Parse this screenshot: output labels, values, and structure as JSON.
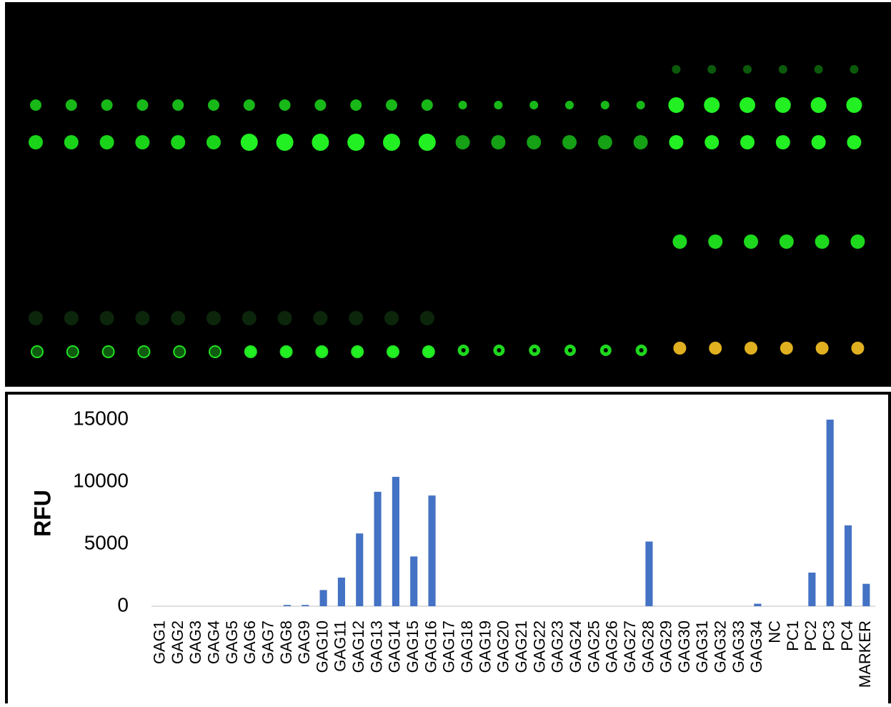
{
  "chart_data": {
    "type": "bar",
    "y_label": "RFU",
    "categories": [
      "GAG1",
      "GAG2",
      "GAG3",
      "GAG4",
      "GAG5",
      "GAG6",
      "GAG7",
      "GAG8",
      "GAG9",
      "GAG10",
      "GAG11",
      "GAG12",
      "GAG13",
      "GAG14",
      "GAG15",
      "GAG16",
      "GAG17",
      "GAG18",
      "GAG19",
      "GAG20",
      "GAG21",
      "GAG22",
      "GAG23",
      "GAG24",
      "GAG25",
      "GAG26",
      "GAG27",
      "GAG28",
      "GAG29",
      "GAG30",
      "GAG31",
      "GAG32",
      "GAG33",
      "GAG34",
      "NC",
      "PC1",
      "PC2",
      "PC3",
      "PC4",
      "MARKER"
    ],
    "values": [
      0,
      0,
      0,
      0,
      0,
      0,
      0,
      100,
      100,
      1300,
      2300,
      5850,
      9200,
      10400,
      4000,
      8900,
      0,
      0,
      0,
      0,
      0,
      0,
      0,
      0,
      0,
      0,
      0,
      5200,
      0,
      0,
      0,
      0,
      0,
      200,
      0,
      0,
      2700,
      15000,
      6500,
      1800
    ],
    "color": "#4472c4",
    "ylim": [
      0,
      15000
    ],
    "yticks": [
      0,
      5000,
      10000,
      15000
    ],
    "grid": false
  }
}
